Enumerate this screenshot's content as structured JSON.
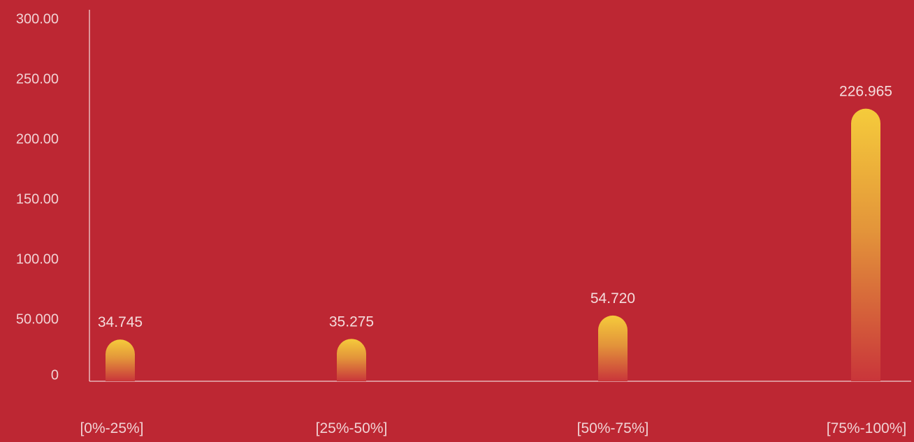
{
  "chart_data": {
    "type": "bar",
    "title": "",
    "xlabel": "",
    "ylabel": "",
    "categories": [
      "[0%-25%]",
      "[25%-50%]",
      "[50%-75%]",
      "[75%-100%]"
    ],
    "values": [
      34.745,
      35.275,
      54.72,
      226.965
    ],
    "data_labels": [
      "34.745",
      "35.275",
      "54.720",
      "226.965"
    ],
    "ylim": [
      0,
      300
    ],
    "y_ticks": [
      0,
      50,
      100,
      150,
      200,
      250,
      300
    ],
    "y_tick_labels": [
      "0",
      "50.000",
      "100.00",
      "150.00",
      "200.00",
      "250.00",
      "300.00"
    ],
    "grid": false,
    "legend": "none",
    "colors": {
      "background": "#bd2733",
      "bar_top": "#f5cb3b",
      "bar_bottom": "#c9353a",
      "axis": "#f0d0d2",
      "text": "#f1d2d4"
    }
  }
}
